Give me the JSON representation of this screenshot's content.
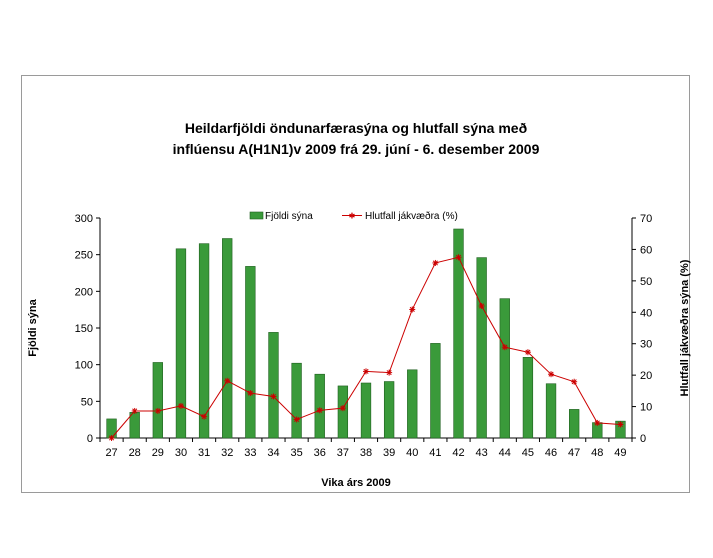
{
  "chart_data": {
    "type": "bar",
    "title": "Heildarfjöldi öndunarfærasýna og hlutfall sýna með",
    "subtitle": "inflúensu A(H1N1)v 2009 frá 29. júní - 6. desember 2009",
    "xlabel": "Vika árs 2009",
    "ylabel": "Fjöldi sýna",
    "ylabel_right": "Hlutfall jákvæðra sýna (%)",
    "categories": [
      "27",
      "28",
      "29",
      "30",
      "31",
      "32",
      "33",
      "34",
      "35",
      "36",
      "37",
      "38",
      "39",
      "40",
      "41",
      "42",
      "43",
      "44",
      "45",
      "46",
      "47",
      "48",
      "49"
    ],
    "ylim": [
      0,
      300
    ],
    "yticks": [
      0,
      50,
      100,
      150,
      200,
      250,
      300
    ],
    "ylim_right": [
      0,
      70
    ],
    "yticks_right": [
      0,
      10,
      20,
      30,
      40,
      50,
      60,
      70
    ],
    "legend_position": "top",
    "grid": false,
    "series": [
      {
        "name": "Fjöldi sýna",
        "type": "bar",
        "axis": "left",
        "color": "#3a9a3a",
        "values": [
          26,
          35,
          103,
          258,
          265,
          272,
          234,
          144,
          102,
          87,
          71,
          75,
          77,
          93,
          129,
          285,
          246,
          190,
          110,
          74,
          39,
          21,
          23
        ]
      },
      {
        "name": "Hlutfall jákvæðra (%)",
        "type": "line",
        "axis": "right",
        "color": "#cc0000",
        "values": [
          0,
          8.6,
          8.6,
          10.2,
          6.8,
          18.2,
          14.3,
          13.2,
          5.9,
          8.8,
          9.5,
          21.2,
          20.8,
          40.9,
          55.7,
          57.5,
          42,
          28.9,
          27.3,
          20.3,
          17.9,
          4.8,
          4.3
        ]
      }
    ]
  }
}
